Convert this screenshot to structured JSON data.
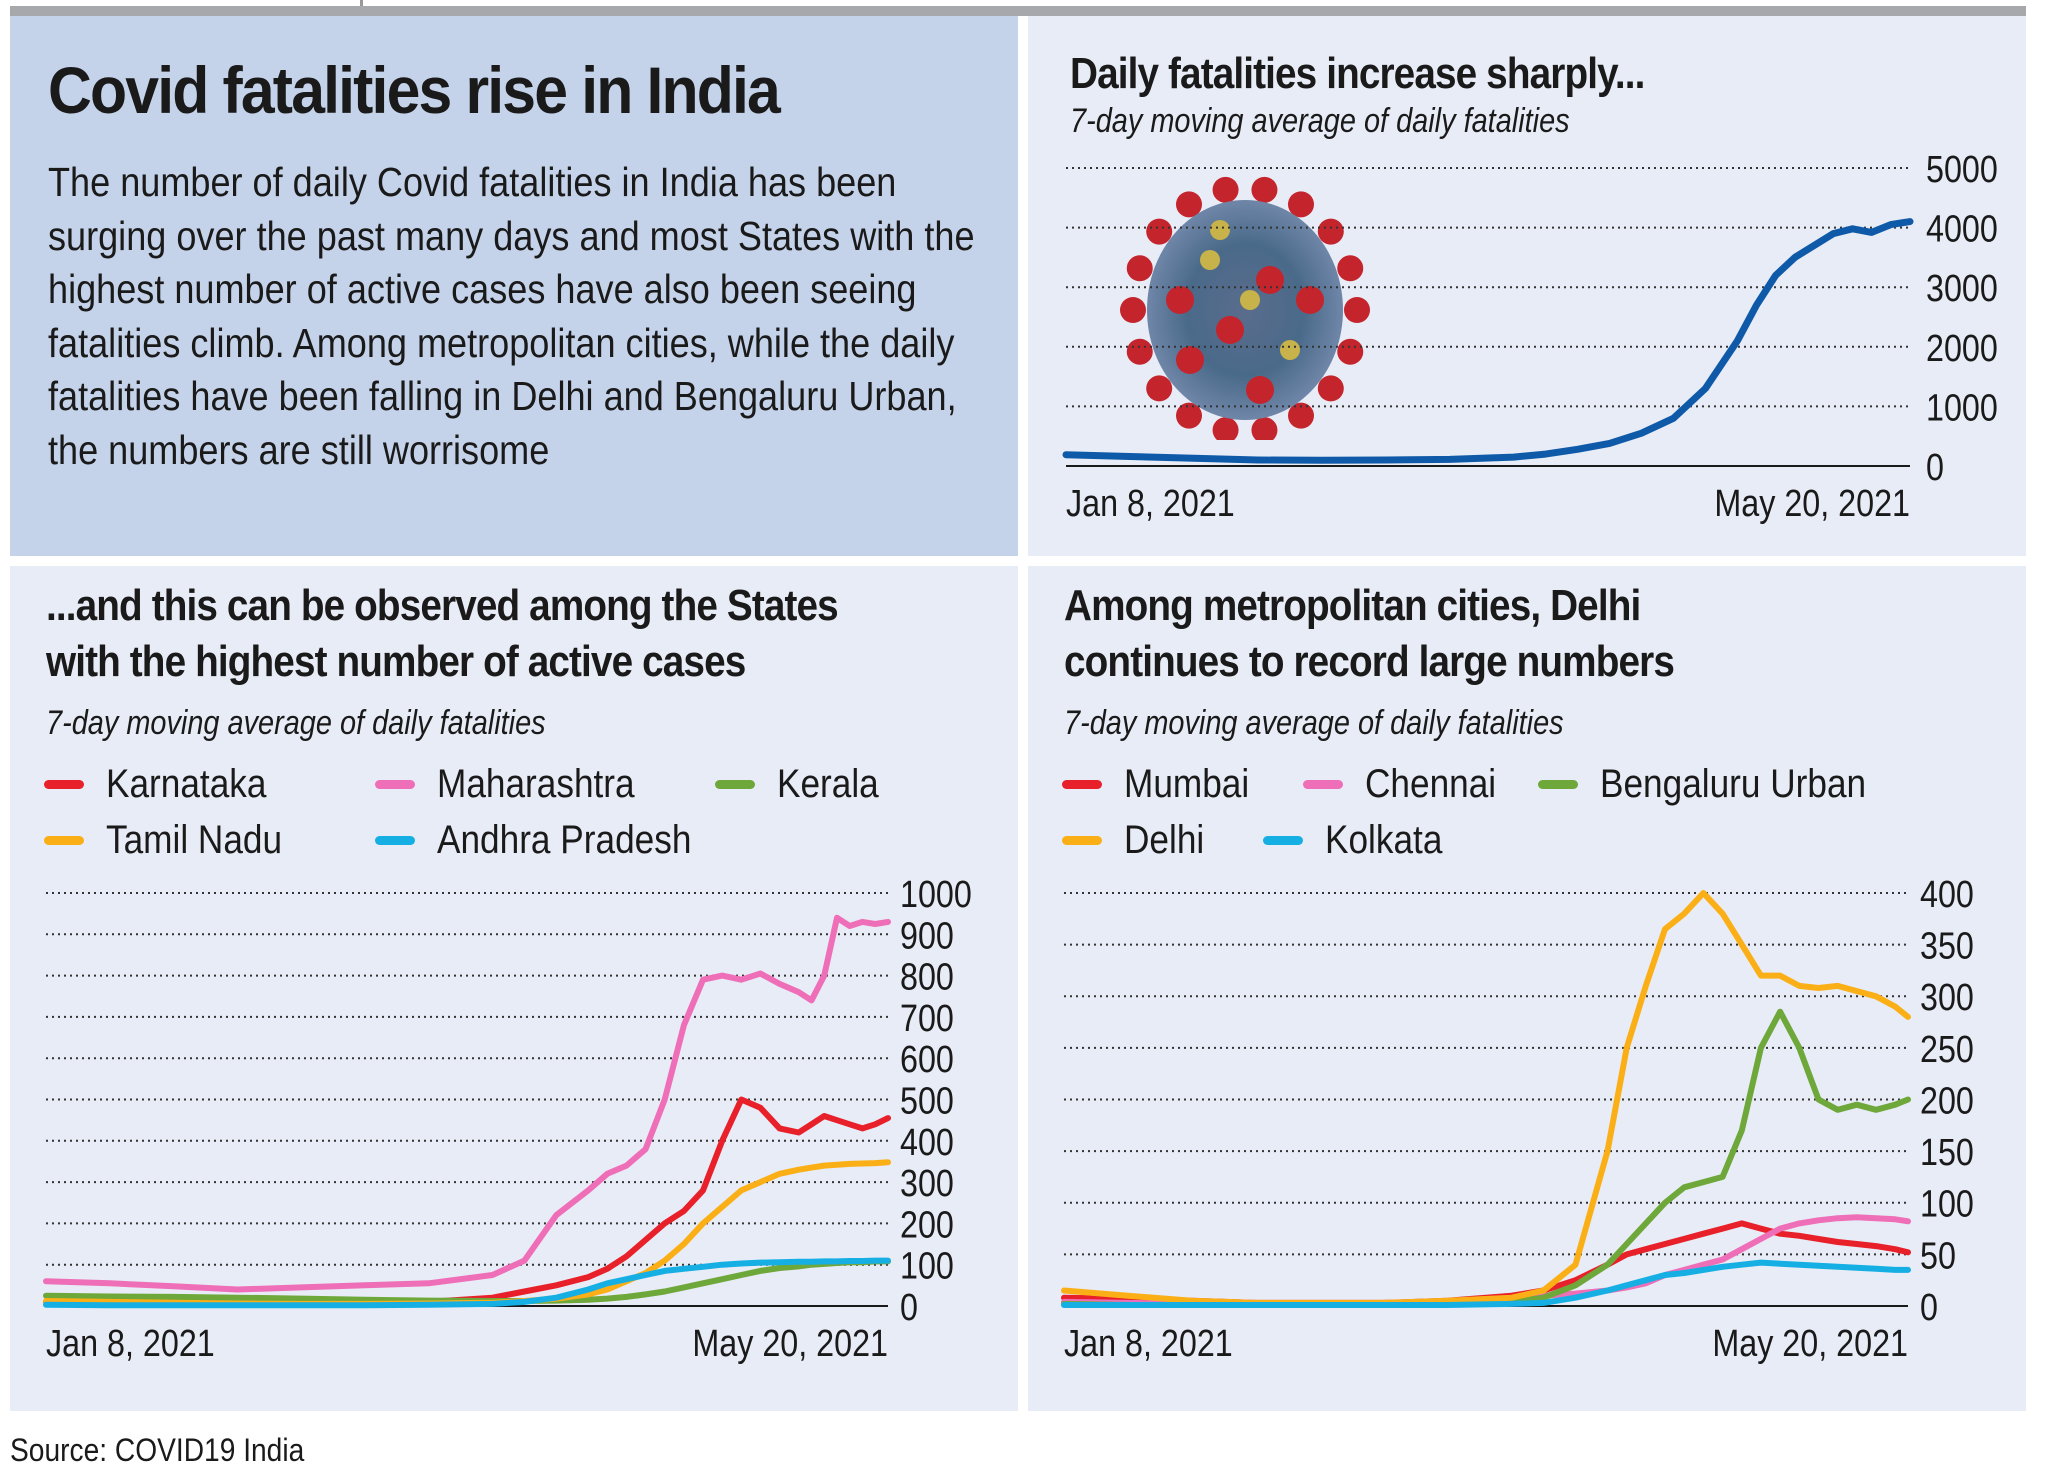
{
  "header": {
    "title": "Covid fatalities rise in India",
    "body": "The number of daily Covid fatalities in India has been surging over the past many days and most States with the highest number of active cases have also been seeing fatalities climb. Among metropolitan cities, while the daily fatalities have been falling in Delhi and Bengaluru Urban, the numbers are still worrisome"
  },
  "panels": {
    "india": {
      "title": "Daily fatalities increase sharply...",
      "subtitle": "7-day moving average of daily fatalities",
      "illustration": "coronavirus-icon"
    },
    "states": {
      "title_line1": "...and this can be observed among the States",
      "title_line2": "with the highest number of active cases",
      "subtitle": "7-day moving average of daily fatalities"
    },
    "cities": {
      "title_line1": "Among metropolitan cities, Delhi",
      "title_line2": "continues to record large numbers",
      "subtitle": "7-day moving average of daily fatalities"
    }
  },
  "source": "Source: COVID19 India",
  "chart_data": [
    {
      "type": "line",
      "title": "Daily fatalities increase sharply...",
      "subtitle": "7-day moving average of daily fatalities",
      "xlabel": "",
      "ylabel": "",
      "x_tick_labels": [
        "Jan 8, 2021",
        "May 20, 2021"
      ],
      "x_range": [
        "Jan 8, 2021",
        "May 20, 2021"
      ],
      "x_days": [
        0,
        10,
        20,
        30,
        40,
        50,
        60,
        70,
        75,
        80,
        85,
        90,
        95,
        100,
        105,
        108,
        111,
        114,
        117,
        120,
        123,
        126,
        129,
        132
      ],
      "ylim": [
        0,
        5000
      ],
      "y_ticks": [
        0,
        1000,
        2000,
        3000,
        4000,
        5000
      ],
      "grid": true,
      "y_axis_side": "right",
      "series": [
        {
          "name": "India",
          "color": "#0f5aa8",
          "values": [
            190,
            160,
            130,
            100,
            95,
            100,
            110,
            150,
            200,
            280,
            380,
            550,
            800,
            1300,
            2100,
            2700,
            3200,
            3500,
            3700,
            3900,
            3980,
            3920,
            4050,
            4100
          ]
        }
      ]
    },
    {
      "type": "line",
      "title": "...and this can be observed among the States with the highest number of active cases",
      "subtitle": "7-day moving average of daily fatalities",
      "x_tick_labels": [
        "Jan 8, 2021",
        "May 20, 2021"
      ],
      "x_range": [
        "Jan 8, 2021",
        "May 20, 2021"
      ],
      "x_days": [
        0,
        10,
        20,
        30,
        40,
        50,
        60,
        70,
        75,
        80,
        85,
        88,
        91,
        94,
        97,
        100,
        103,
        106,
        109,
        112,
        115,
        118,
        120,
        122,
        124,
        126,
        128,
        130,
        132
      ],
      "ylim": [
        0,
        1000
      ],
      "y_ticks": [
        0,
        100,
        200,
        300,
        400,
        500,
        600,
        700,
        800,
        900,
        1000
      ],
      "grid": true,
      "y_axis_side": "right",
      "legend": "top",
      "series": [
        {
          "name": "Karnataka",
          "color": "#e8202a",
          "values": [
            10,
            8,
            8,
            8,
            8,
            8,
            10,
            20,
            35,
            50,
            70,
            90,
            120,
            160,
            200,
            230,
            280,
            400,
            500,
            480,
            430,
            420,
            440,
            460,
            450,
            440,
            430,
            440,
            455
          ]
        },
        {
          "name": "Maharashtra",
          "color": "#ee6fb8",
          "values": [
            60,
            55,
            48,
            40,
            45,
            50,
            55,
            75,
            110,
            220,
            280,
            320,
            340,
            380,
            500,
            680,
            790,
            800,
            790,
            805,
            780,
            760,
            740,
            800,
            940,
            920,
            930,
            925,
            930
          ]
        },
        {
          "name": "Kerala",
          "color": "#6ea73a",
          "values": [
            25,
            23,
            22,
            20,
            18,
            15,
            13,
            12,
            12,
            13,
            15,
            18,
            22,
            28,
            35,
            45,
            55,
            65,
            75,
            85,
            92,
            96,
            100,
            102,
            104,
            106,
            106,
            108,
            108
          ]
        },
        {
          "name": "Tamil Nadu",
          "color": "#fbaf17",
          "values": [
            12,
            10,
            8,
            6,
            5,
            5,
            6,
            8,
            12,
            18,
            28,
            40,
            60,
            80,
            110,
            150,
            200,
            240,
            280,
            300,
            320,
            330,
            335,
            340,
            342,
            344,
            345,
            346,
            348
          ]
        },
        {
          "name": "Andhra Pradesh",
          "color": "#16afe4",
          "values": [
            3,
            2,
            2,
            2,
            2,
            2,
            3,
            5,
            10,
            20,
            40,
            55,
            65,
            75,
            85,
            90,
            95,
            100,
            103,
            105,
            106,
            107,
            107,
            108,
            108,
            109,
            109,
            110,
            110
          ]
        }
      ]
    },
    {
      "type": "line",
      "title": "Among metropolitan cities, Delhi continues to record large numbers",
      "subtitle": "7-day moving average of daily fatalities",
      "x_tick_labels": [
        "Jan 8, 2021",
        "May 20, 2021"
      ],
      "x_range": [
        "Jan 8, 2021",
        "May 20, 2021"
      ],
      "x_days": [
        0,
        10,
        20,
        30,
        40,
        50,
        60,
        70,
        75,
        80,
        85,
        88,
        91,
        94,
        97,
        100,
        103,
        106,
        109,
        112,
        115,
        118,
        121,
        124,
        127,
        130,
        132
      ],
      "ylim": [
        0,
        400
      ],
      "y_ticks": [
        0,
        50,
        100,
        150,
        200,
        250,
        300,
        350,
        400
      ],
      "grid": true,
      "y_axis_side": "right",
      "legend": "top",
      "series": [
        {
          "name": "Mumbai",
          "color": "#e8202a",
          "values": [
            8,
            7,
            5,
            3,
            3,
            3,
            5,
            10,
            15,
            25,
            40,
            50,
            55,
            60,
            65,
            70,
            75,
            80,
            75,
            70,
            68,
            65,
            62,
            60,
            58,
            55,
            52
          ]
        },
        {
          "name": "Chennai",
          "color": "#ee6fb8",
          "values": [
            4,
            3,
            2,
            1,
            1,
            2,
            3,
            6,
            10,
            12,
            15,
            18,
            22,
            30,
            35,
            40,
            45,
            55,
            65,
            75,
            80,
            83,
            85,
            86,
            85,
            84,
            82
          ]
        },
        {
          "name": "Bengaluru Urban",
          "color": "#6ea73a",
          "values": [
            2,
            1,
            1,
            1,
            1,
            1,
            2,
            4,
            8,
            20,
            40,
            60,
            80,
            100,
            115,
            120,
            125,
            170,
            250,
            285,
            250,
            200,
            190,
            195,
            190,
            195,
            200
          ]
        },
        {
          "name": "Delhi",
          "color": "#fbaf17",
          "values": [
            15,
            10,
            5,
            3,
            3,
            3,
            5,
            8,
            15,
            40,
            150,
            250,
            310,
            365,
            380,
            400,
            380,
            350,
            320,
            320,
            310,
            308,
            310,
            305,
            300,
            290,
            280
          ]
        },
        {
          "name": "Kolkata",
          "color": "#16afe4",
          "values": [
            1,
            1,
            1,
            1,
            1,
            1,
            1,
            2,
            3,
            8,
            15,
            20,
            25,
            30,
            32,
            35,
            38,
            40,
            42,
            41,
            40,
            39,
            38,
            37,
            36,
            35,
            35
          ]
        }
      ]
    }
  ]
}
